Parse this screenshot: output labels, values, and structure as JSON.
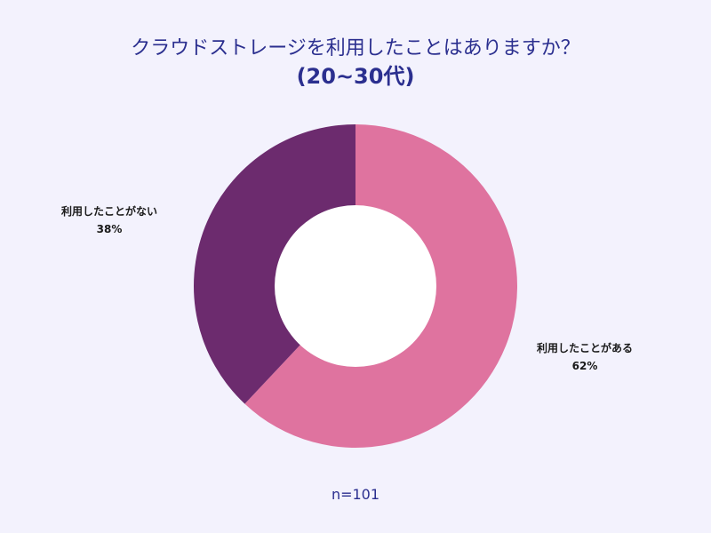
{
  "chart_data": {
    "type": "pie",
    "title_line1": "クラウドストレージを利用したことはありますか？",
    "title_line2": "(20~30代)",
    "slices": [
      {
        "label": "利用したことがある",
        "value": 62,
        "value_label": "62%",
        "color": "#df739f"
      },
      {
        "label": "利用したことがない",
        "value": 38,
        "value_label": "38%",
        "color": "#6c2b6e"
      }
    ],
    "hole_color": "#ffffff",
    "note": "n=101"
  }
}
